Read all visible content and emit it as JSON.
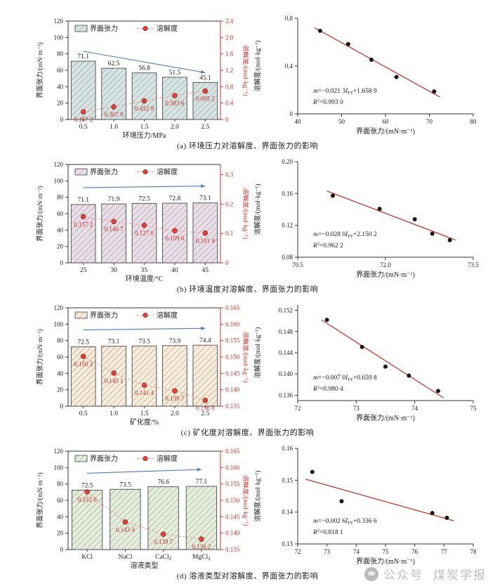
{
  "captions": {
    "a": "(a) 环境压力对溶解度、界面张力的影响",
    "b": "(b) 环境温度对溶解度、界面张力的影响",
    "c": "(c) 矿化度对溶解度、界面张力的影响",
    "d": "(d) 溶液类型对溶解度、界面张力的影响"
  },
  "watermark": {
    "icon": "wechat-badge",
    "text1": "公众号",
    "text2": "煤炭学报"
  },
  "colors": {
    "axis": "#333333",
    "red": "#c9302c",
    "point_red": "#d8453e",
    "point_red_edge": "#9b1c1c",
    "pink_dash": "#e79a96",
    "arrow_blue": "#4d7ab5",
    "hatch": "#8a8a8a",
    "fit_line": "#c4392e",
    "scatter_point": "#161616",
    "bar_border": "#4a4a4a",
    "text": "#1a1a1a"
  },
  "chart_data": [
    {
      "type": "bar-line-dual-axis",
      "panel": "a",
      "legend": [
        "界面张力",
        "溶解度"
      ],
      "xlabel": "环境压力/MPa",
      "ylabel_left": "界面张力/(mN·m⁻¹)",
      "ylabel_right": "溶解度/(mol·kg⁻¹)",
      "categories": [
        "0.5",
        "1.0",
        "1.5",
        "2.0",
        "2.5"
      ],
      "bar_values": [
        71.1,
        62.5,
        56.8,
        51.5,
        45.1
      ],
      "bar_labels": [
        "71.1",
        "62.5",
        "56.8",
        "51.5",
        "45.1"
      ],
      "line_values": [
        0.1872,
        0.3079,
        0.4529,
        0.5836,
        0.6952
      ],
      "point_labels": [
        "0.187 2",
        "0.307 9",
        "0.452 9",
        "0.583 6",
        "0.695 2"
      ],
      "ylim_left": [
        0,
        120
      ],
      "yticks_left": [
        "0",
        "20",
        "40",
        "60",
        "80",
        "100",
        "120"
      ],
      "ylim_right": [
        0,
        2.4
      ],
      "yticks_right": [
        "0",
        "0.4",
        "0.8",
        "1.2",
        "1.6",
        "2.0",
        "2.4"
      ],
      "bar_fill": "#d7e4e4",
      "trend_arrow": "falling"
    },
    {
      "type": "scatter-fit",
      "panel": "a",
      "xlabel": "界面张力/(mN·m⁻¹)",
      "ylabel": "溶解度/(mol·kg⁻¹)",
      "x": [
        45.1,
        51.5,
        56.8,
        62.5,
        71.1
      ],
      "y": [
        0.6952,
        0.5836,
        0.4529,
        0.3079,
        0.1872
      ],
      "xlim": [
        40,
        80
      ],
      "xticks": [
        "40",
        "50",
        "60",
        "70",
        "80"
      ],
      "ylim": [
        0,
        0.8
      ],
      "yticks": [
        "0",
        "0.4",
        "0.8"
      ],
      "equation_parts": [
        "m",
        "=−0.021 3",
        "I",
        "FT",
        "+1.658 9"
      ],
      "r2_parts": [
        "R",
        "2",
        "=0.993 0"
      ]
    },
    {
      "type": "bar-line-dual-axis",
      "panel": "b",
      "legend": [
        "界面张力",
        "溶解度"
      ],
      "xlabel": "环境温度/°C",
      "ylabel_left": "界面张力/(mN·m⁻¹)",
      "ylabel_right": "溶解度/(mol·kg⁻¹)",
      "categories": [
        "25",
        "30",
        "35",
        "40",
        "45"
      ],
      "bar_values": [
        71.1,
        71.9,
        72.5,
        72.8,
        73.1
      ],
      "bar_labels": [
        "71.1",
        "71.9",
        "72.5",
        "72.8",
        "73.1"
      ],
      "line_values": [
        0.1572,
        0.1407,
        0.1276,
        0.1096,
        0.1014
      ],
      "point_labels": [
        "0.157 2",
        "0.140 7",
        "0.127 6",
        "0.109 6",
        "0.101 4"
      ],
      "ylim_left": [
        0,
        120
      ],
      "yticks_left": [
        "0",
        "20",
        "40",
        "60",
        "80",
        "100",
        "120"
      ],
      "ylim_right": [
        0,
        0.335
      ],
      "yticks_right": [
        "0",
        "0.1",
        "0.2",
        "0.3"
      ],
      "bar_fill": "#eadfe8",
      "trend_arrow": "flat-rising"
    },
    {
      "type": "scatter-fit",
      "panel": "b",
      "xlabel": "界面张力/(mN·m⁻¹)",
      "ylabel": "溶解度/(mol·kg⁻¹)",
      "x": [
        71.1,
        71.9,
        72.5,
        72.8,
        73.1
      ],
      "y": [
        0.1572,
        0.1407,
        0.1276,
        0.1096,
        0.1014
      ],
      "xlim": [
        70.5,
        73.5
      ],
      "xticks": [
        "70.5",
        "72.0",
        "73.5"
      ],
      "ylim": [
        0.08,
        0.2
      ],
      "yticks": [
        "0.08",
        "0.12",
        "0.16",
        "0.20"
      ],
      "equation_parts": [
        "m",
        "=−0.028 0",
        "I",
        "FT",
        "+2.150 2"
      ],
      "r2_parts": [
        "R",
        "2",
        "=0.962 2"
      ]
    },
    {
      "type": "bar-line-dual-axis",
      "panel": "c",
      "legend": [
        "界面张力",
        "溶解度"
      ],
      "xlabel": "矿化度/%",
      "ylabel_left": "界面张力/(mN·m⁻¹)",
      "ylabel_right": "溶解度/(mol·kg⁻¹)",
      "categories": [
        "0.5",
        "1.0",
        "1.5",
        "2.0",
        "2.5"
      ],
      "bar_values": [
        72.5,
        73.1,
        73.5,
        73.9,
        74.4
      ],
      "bar_labels": [
        "72.5",
        "73.1",
        "73.5",
        "73.9",
        "74.4"
      ],
      "line_values": [
        0.1502,
        0.1451,
        0.1414,
        0.1397,
        0.1368
      ],
      "point_labels": [
        "0.150 2",
        "0.145 1",
        "0.141 4",
        "0.139 7",
        "0.136 8"
      ],
      "ylim_left": [
        0,
        120
      ],
      "yticks_left": [
        "0",
        "20",
        "40",
        "60",
        "80",
        "100",
        "120"
      ],
      "ylim_right": [
        0.135,
        0.165
      ],
      "yticks_right": [
        "0.135",
        "0.140",
        "0.145",
        "0.150",
        "0.155",
        "0.160",
        "0.165"
      ],
      "bar_fill": "#f9ecd9",
      "trend_arrow": "flat-rising"
    },
    {
      "type": "scatter-fit",
      "panel": "c",
      "xlabel": "界面张力/(mN·m⁻¹)",
      "ylabel": "溶解度/(mol·kg⁻¹)",
      "x": [
        72.5,
        73.1,
        73.5,
        73.9,
        74.4
      ],
      "y": [
        0.1502,
        0.1451,
        0.1414,
        0.1397,
        0.1368
      ],
      "xlim": [
        72,
        75
      ],
      "xticks": [
        "72",
        "73",
        "74",
        "75"
      ],
      "ylim": [
        0.135,
        0.153
      ],
      "yticks": [
        "0.136",
        "0.140",
        "0.144",
        "0.148",
        "0.152"
      ],
      "equation_parts": [
        "m",
        "=−0.007 0",
        "I",
        "FT",
        "+0.659 8"
      ],
      "r2_parts": [
        "R",
        "2",
        "=0.980 4"
      ]
    },
    {
      "type": "bar-line-dual-axis",
      "panel": "d",
      "legend": [
        "界面张力",
        "溶解度"
      ],
      "xlabel": "溶液类型",
      "ylabel_left": "界面张力/(mN·m⁻¹)",
      "ylabel_right": "溶解度/(mol·kg⁻¹)",
      "categories": [
        "KCl",
        "NaCl",
        "CaCl2",
        "MgCl2"
      ],
      "bar_values": [
        72.5,
        73.5,
        76.6,
        77.1
      ],
      "bar_labels": [
        "72.5",
        "73.5",
        "76.6",
        "77.1"
      ],
      "line_values": [
        0.1526,
        0.1434,
        0.1397,
        0.1382
      ],
      "point_labels": [
        "0.152 6",
        "0.143 4",
        "0.139 7",
        "0.138 2"
      ],
      "ylim_left": [
        0,
        120
      ],
      "yticks_left": [
        "0",
        "20",
        "40",
        "60",
        "80",
        "100",
        "120"
      ],
      "ylim_right": [
        0.135,
        0.165
      ],
      "yticks_right": [
        "0.135",
        "0.140",
        "0.145",
        "0.150",
        "0.155",
        "0.160",
        "0.165"
      ],
      "bar_fill": "#e4eeda",
      "trend_arrow": "flat-rising"
    },
    {
      "type": "scatter-fit",
      "panel": "d",
      "xlabel": "界面张力/(mN·m⁻¹)",
      "ylabel": "溶解度/(mol·kg⁻¹)",
      "x": [
        72.5,
        73.5,
        76.6,
        77.1
      ],
      "y": [
        0.1526,
        0.1434,
        0.1397,
        0.1382
      ],
      "xlim": [
        72,
        78
      ],
      "xticks": [
        "72",
        "73",
        "74",
        "75",
        "76",
        "77",
        "78"
      ],
      "ylim": [
        0.13,
        0.16
      ],
      "yticks": [
        "0.13",
        "0.14",
        "0.15",
        "0.16"
      ],
      "equation_parts": [
        "m",
        "=−0.002 6",
        "I",
        "FT",
        "+0.336 6"
      ],
      "r2_parts": [
        "R",
        "2",
        "=0.818 1"
      ]
    }
  ]
}
